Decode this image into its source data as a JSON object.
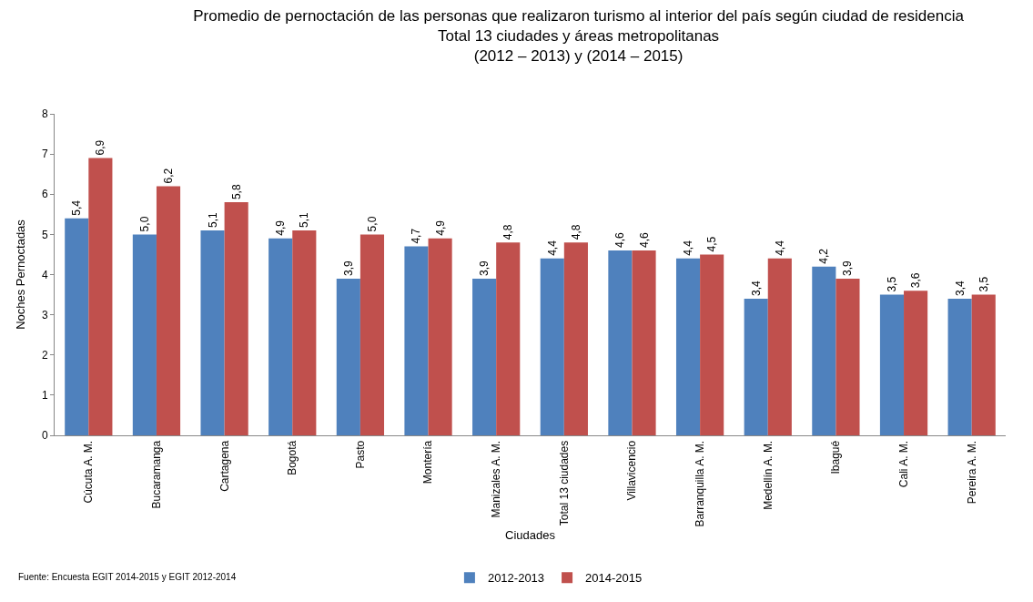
{
  "chart_data": {
    "type": "bar",
    "title": "Promedio de pernoctación de las personas que realizaron turismo al interior del país según ciudad de residencia\nTotal 13 ciudades y áreas metropolitanas\n(2012 – 2013) y (2014 – 2015)",
    "xlabel": "Ciudades",
    "ylabel": "Noches Pernoctadas",
    "categories": [
      "Cúcuta A. M.",
      "Bucaramanga",
      "Cartagena",
      "Bogotá",
      "Pasto",
      "Montería",
      "Manizales A. M.",
      "Total 13 ciudades",
      "Villavicencio",
      "Barranquilla A. M.",
      "Medellín A. M.",
      "Ibagué",
      "Cali A. M.",
      "Pereira A. M."
    ],
    "series": [
      {
        "name": "2012-2013",
        "color": "#4f81bd",
        "values": [
          5.4,
          5.0,
          5.1,
          4.9,
          3.9,
          4.7,
          3.9,
          4.4,
          4.6,
          4.4,
          3.4,
          4.2,
          3.5,
          3.4
        ],
        "value_labels": [
          "5,4",
          "5,0",
          "5,1",
          "4,9",
          "3,9",
          "4,7",
          "3,9",
          "4,4",
          "4,6",
          "4,4",
          "3,4",
          "4,2",
          "3,5",
          "3,4"
        ]
      },
      {
        "name": "2014-2015",
        "color": "#c0504d",
        "values": [
          6.9,
          6.2,
          5.8,
          5.1,
          5.0,
          4.9,
          4.8,
          4.8,
          4.6,
          4.5,
          4.4,
          3.9,
          3.6,
          3.5
        ],
        "value_labels": [
          "6,9",
          "6,2",
          "5,8",
          "5,1",
          "5,0",
          "4,9",
          "4,8",
          "4,8",
          "4,6",
          "4,5",
          "4,4",
          "3,9",
          "3,6",
          "3,5"
        ]
      }
    ],
    "ylim": [
      0,
      8
    ],
    "yticks": [
      0,
      1,
      2,
      3,
      4,
      5,
      6,
      7,
      8
    ],
    "legend": "bottom",
    "annotations": [
      "Fuente: Encuesta EGIT 2014-2015 y EGIT 2012-2014"
    ]
  }
}
